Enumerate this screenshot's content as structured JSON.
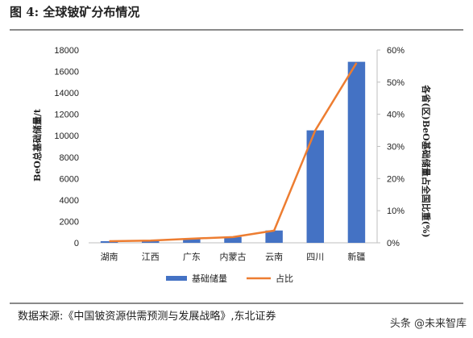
{
  "figure": {
    "title": "图 4:  全球铍矿分布情况",
    "source": "数据来源:《中国铍资源供需预测与发展战略》,东北证券",
    "watermark": "头条 @未来智库"
  },
  "chart_data": {
    "type": "bar",
    "categories": [
      "湖南",
      "江西",
      "广东",
      "内蒙古",
      "云南",
      "四川",
      "新疆"
    ],
    "ylabel": "BeO总基础储量/t",
    "y2label": "各省(区)BeO基础储量占全国比重(%)",
    "ylim": [
      0,
      18000
    ],
    "yticks": [
      "0",
      "2000",
      "4000",
      "6000",
      "8000",
      "10000",
      "12000",
      "14000",
      "16000",
      "18000"
    ],
    "y2lim": [
      0,
      60
    ],
    "y2ticks": [
      "0%",
      "10%",
      "20%",
      "30%",
      "40%",
      "50%",
      "60%"
    ],
    "grid": false,
    "legend_position": "bottom",
    "series": [
      {
        "name": "基础储量",
        "type": "bar",
        "axis": "left",
        "color": "#4472C4",
        "values": [
          150,
          200,
          400,
          550,
          1150,
          10500,
          16900
        ]
      },
      {
        "name": "占比",
        "type": "line",
        "axis": "right",
        "color": "#ED7D31",
        "values": [
          0.5,
          0.7,
          1.3,
          1.8,
          3.8,
          35,
          56
        ]
      }
    ]
  }
}
